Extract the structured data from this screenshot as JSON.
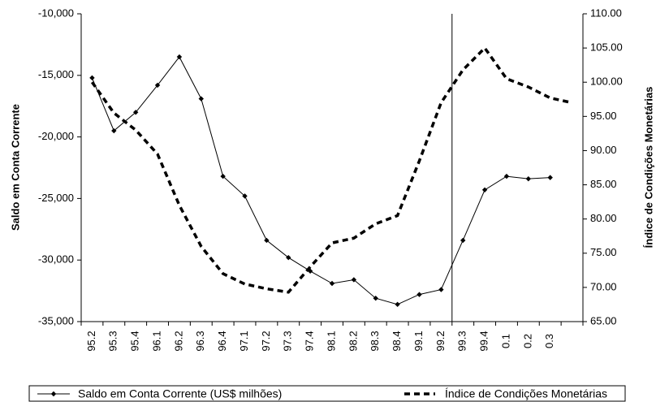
{
  "chart_data": {
    "type": "line",
    "categories": [
      "95.2",
      "95.3",
      "95.4",
      "96.1",
      "96.2",
      "96.3",
      "96.4",
      "97.1",
      "97.2",
      "97.3",
      "97.4",
      "98.1",
      "98.2",
      "98.3",
      "98.4",
      "99.1",
      "99.2",
      "99.3",
      "99.4",
      "0.1",
      "0.2",
      "0.3",
      null
    ],
    "y_label": "Saldo em Conta Corrente",
    "y2_label": "Índice de Condições Monetárias",
    "ylim": [
      -35000,
      -10000
    ],
    "yticks": [
      {
        "value": -35000,
        "label": "-35,000"
      },
      {
        "value": -30000,
        "label": "-30,000"
      },
      {
        "value": -25000,
        "label": "-25,000"
      },
      {
        "value": -20000,
        "label": "-20,000"
      },
      {
        "value": -15000,
        "label": "-15,000"
      },
      {
        "value": -10000,
        "label": "-10,000"
      }
    ],
    "y2lim": [
      65,
      110
    ],
    "y2ticks": [
      {
        "value": 65,
        "label": "65.00"
      },
      {
        "value": 70,
        "label": "70.00"
      },
      {
        "value": 75,
        "label": "75.00"
      },
      {
        "value": 80,
        "label": "80.00"
      },
      {
        "value": 85,
        "label": "85.00"
      },
      {
        "value": 90,
        "label": "90.00"
      },
      {
        "value": 95,
        "label": "95.00"
      },
      {
        "value": 100,
        "label": "100.00"
      },
      {
        "value": 105,
        "label": "105.00"
      },
      {
        "value": 110,
        "label": "110.00"
      }
    ],
    "series": [
      {
        "name": "Saldo em Conta Corrente (US$ milhões)",
        "color": "#000000",
        "style": "solid-marker",
        "values": [
          -15200,
          -19500,
          -18000,
          -15800,
          -13500,
          -16900,
          -23200,
          -24800,
          -28400,
          -29800,
          -30900,
          -31900,
          -31600,
          -33100,
          -33600,
          -32800,
          -32400,
          -28400,
          -24300,
          -23200,
          -23400,
          -23300,
          null
        ]
      },
      {
        "name": "Índice de Condições Monetárias",
        "color": "#000000",
        "style": "dashed",
        "axis": "y2",
        "values": [
          100.0,
          95.5,
          93.0,
          89.5,
          82.0,
          76.0,
          72.0,
          70.5,
          69.8,
          69.3,
          73.0,
          76.5,
          77.2,
          79.3,
          80.5,
          88.5,
          97.0,
          101.8,
          105.0,
          100.5,
          99.3,
          97.7,
          97.0
        ]
      }
    ],
    "grid": false,
    "legend": "bottom"
  }
}
